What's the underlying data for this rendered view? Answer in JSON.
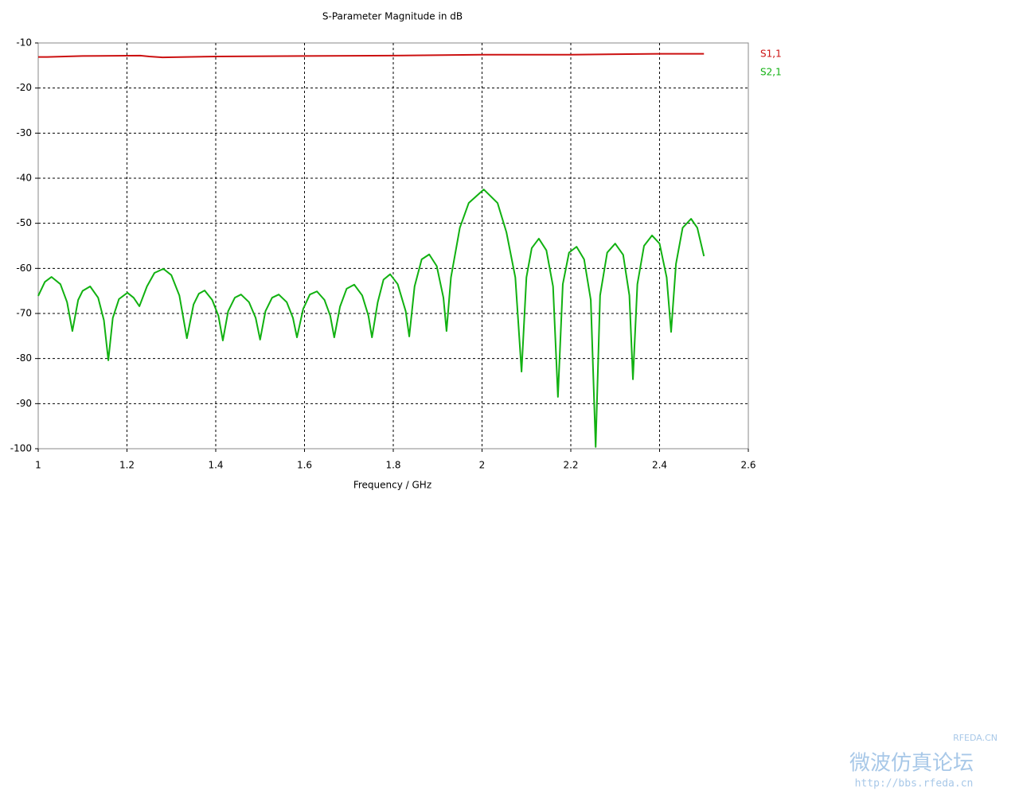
{
  "chart_data": {
    "type": "line",
    "title": "S-Parameter Magnitude in dB",
    "xlabel": "Frequency / GHz",
    "xlim": [
      1,
      2.6
    ],
    "xticks": [
      1,
      1.2,
      1.4,
      1.6,
      1.8,
      2,
      2.2,
      2.4,
      2.6
    ],
    "ylim": [
      -100,
      -10
    ],
    "yticks": [
      -10,
      -20,
      -30,
      -40,
      -50,
      -60,
      -70,
      -80,
      -90,
      -100
    ],
    "grid": true,
    "legend": "right",
    "series": [
      {
        "name": "S1,1",
        "color": "#cc1111",
        "x": [
          1.0,
          1.02,
          1.1,
          1.23,
          1.25,
          1.28,
          1.4,
          1.6,
          1.8,
          2.0,
          2.2,
          2.4,
          2.5
        ],
        "values": [
          -13.1,
          -13.1,
          -12.9,
          -12.8,
          -13.0,
          -13.2,
          -13.0,
          -12.9,
          -12.8,
          -12.6,
          -12.6,
          -12.4,
          -12.4
        ]
      },
      {
        "name": "S2,1",
        "color": "#11b111",
        "x": [
          1.0,
          1.015,
          1.03,
          1.05,
          1.065,
          1.077,
          1.09,
          1.1,
          1.117,
          1.135,
          1.148,
          1.158,
          1.168,
          1.182,
          1.201,
          1.215,
          1.228,
          1.245,
          1.262,
          1.282,
          1.3,
          1.318,
          1.335,
          1.35,
          1.362,
          1.375,
          1.392,
          1.406,
          1.416,
          1.428,
          1.443,
          1.457,
          1.475,
          1.49,
          1.5,
          1.512,
          1.527,
          1.542,
          1.56,
          1.574,
          1.583,
          1.597,
          1.612,
          1.628,
          1.645,
          1.658,
          1.667,
          1.68,
          1.695,
          1.712,
          1.73,
          1.744,
          1.752,
          1.765,
          1.778,
          1.793,
          1.81,
          1.828,
          1.836,
          1.848,
          1.864,
          1.881,
          1.898,
          1.913,
          1.92,
          1.93,
          1.95,
          1.97,
          2.004,
          2.035,
          2.055,
          2.075,
          2.089,
          2.1,
          2.112,
          2.128,
          2.145,
          2.16,
          2.171,
          2.182,
          2.196,
          2.213,
          2.23,
          2.245,
          2.256,
          2.266,
          2.282,
          2.3,
          2.318,
          2.332,
          2.34,
          2.35,
          2.365,
          2.383,
          2.4,
          2.416,
          2.426,
          2.437,
          2.452,
          2.471,
          2.485,
          2.5
        ],
        "values": [
          -66.1,
          -63.0,
          -61.9,
          -63.5,
          -67.5,
          -73.9,
          -67.0,
          -65.0,
          -64.0,
          -66.5,
          -71.5,
          -80.4,
          -71.0,
          -66.8,
          -65.4,
          -66.5,
          -68.4,
          -64.0,
          -61.0,
          -60.1,
          -61.5,
          -66.0,
          -75.5,
          -68.0,
          -65.6,
          -64.9,
          -67.0,
          -70.5,
          -76.0,
          -69.5,
          -66.5,
          -65.8,
          -67.5,
          -71.0,
          -75.8,
          -69.5,
          -66.5,
          -65.8,
          -67.5,
          -71.0,
          -75.3,
          -69.0,
          -65.8,
          -65.1,
          -67.0,
          -70.5,
          -75.3,
          -68.5,
          -64.5,
          -63.6,
          -66.0,
          -70.5,
          -75.3,
          -67.5,
          -62.5,
          -61.3,
          -63.5,
          -69.5,
          -75.1,
          -64.0,
          -58.0,
          -56.9,
          -59.5,
          -66.5,
          -73.9,
          -62.0,
          -51.0,
          -45.5,
          -42.5,
          -45.5,
          -52.0,
          -62.0,
          -82.9,
          -62.0,
          -55.5,
          -53.4,
          -56.0,
          -64.0,
          -88.5,
          -63.5,
          -56.5,
          -55.2,
          -58.0,
          -67.0,
          -99.6,
          -66.0,
          -56.5,
          -54.5,
          -57.0,
          -66.0,
          -84.6,
          -63.5,
          -55.0,
          -52.7,
          -54.5,
          -62.0,
          -74.1,
          -59.0,
          -51.0,
          -49.0,
          -51.0,
          -57.3
        ]
      }
    ]
  },
  "watermark": {
    "site": "RFEDA.CN",
    "forum": "微波仿真论坛",
    "url": "http://bbs.rfeda.cn"
  }
}
